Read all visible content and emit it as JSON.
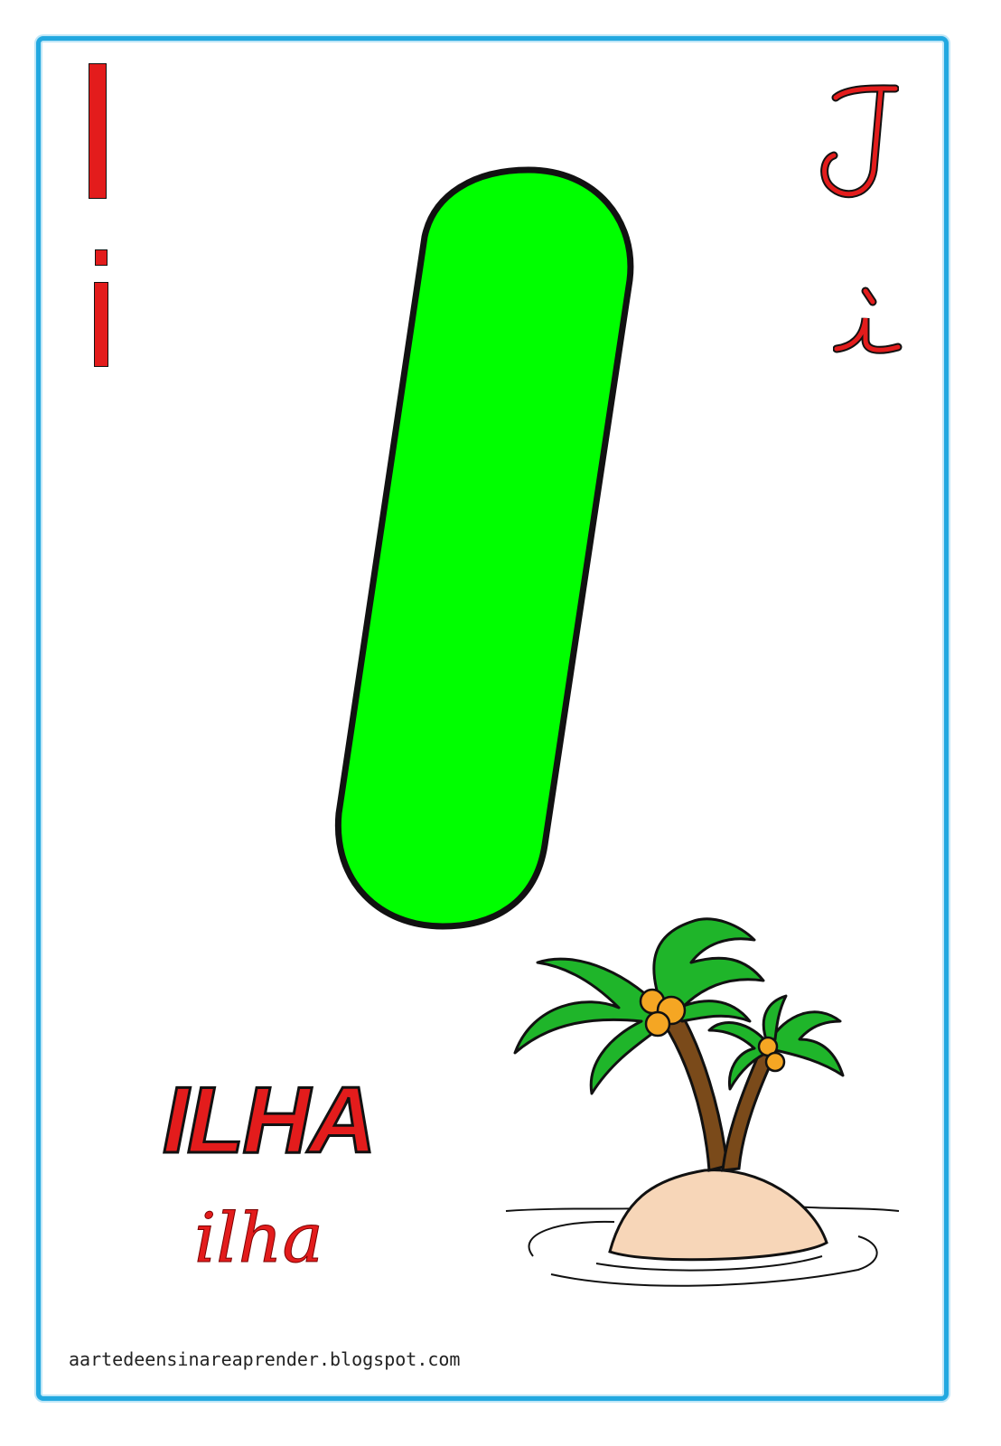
{
  "card": {
    "letter": "I",
    "word_print": "ILHA",
    "word_cursive": "ilha",
    "credit": "aartedeensinareaprender.blogspot.com"
  },
  "colors": {
    "frame": "#22a8e0",
    "letter_fill": "#00ff00",
    "text_red": "#e31c1c",
    "outline": "#111111"
  },
  "icons": {
    "illustration": "palm-island-icon"
  }
}
